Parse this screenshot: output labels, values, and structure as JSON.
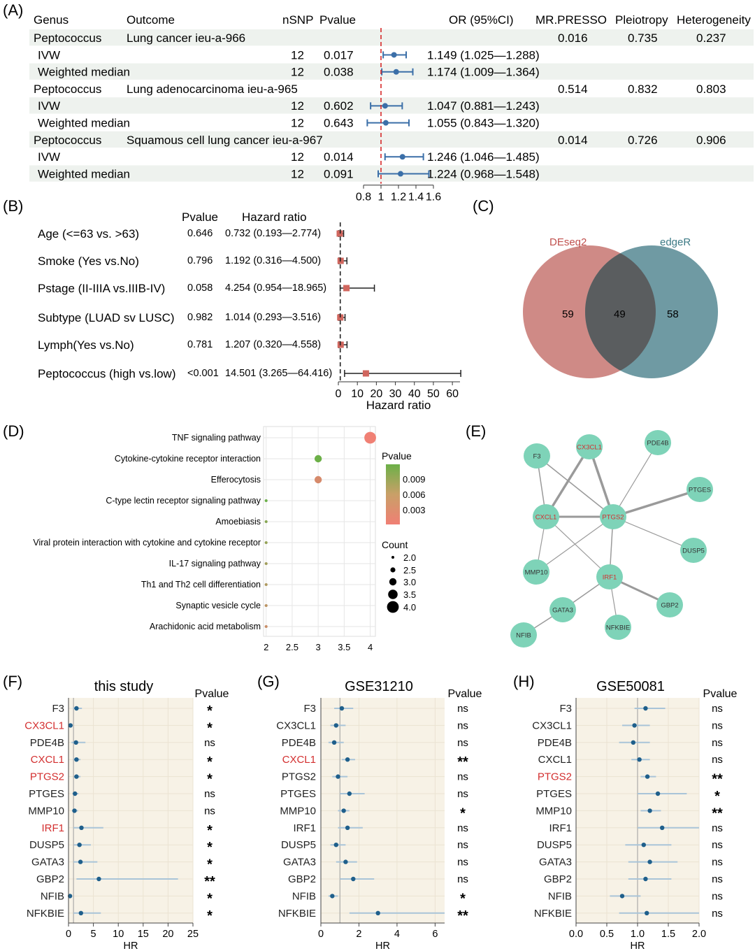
{
  "panel_labels": {
    "A": "(A)",
    "B": "(B)",
    "C": "(C)",
    "D": "(D)",
    "E": "(E)",
    "F": "(F)",
    "G": "(G)",
    "H": "(H)"
  },
  "colors": {
    "blue": "#3b6fa8",
    "red_dash": "#d62828",
    "stripe": "#eef2ee",
    "square": "#d0665e",
    "deseq": "#cf8a86",
    "edger": "#6f9aa3",
    "overlap": "#5a5d5f",
    "node": "#7ed3b8",
    "gene_red": "#d32f2f",
    "forest_bg": "#f7f2e6",
    "ci": "#a9c4d8",
    "dot": "#1f5f8b"
  },
  "panelA": {
    "headers": {
      "genus": "Genus",
      "outcome": "Outcome",
      "nsnp": "nSNP",
      "pvalue": "Pvalue",
      "or": "OR (95%CI)",
      "presso": "MR.PRESSO",
      "pleio": "Pleiotropy",
      "hetero": "Heterogeneity"
    },
    "rows": [
      {
        "kind": "group",
        "genus": "Peptococcus",
        "outcome": "Lung cancer ieu-a-966",
        "presso": "0.016",
        "pleio": "0.735",
        "hetero": "0.237"
      },
      {
        "kind": "method",
        "method": "IVW",
        "nsnp": "12",
        "pvalue": "0.017",
        "or_text": "1.149 (1.025—1.288)",
        "or": 1.149,
        "lo": 1.025,
        "hi": 1.288
      },
      {
        "kind": "method",
        "method": "Weighted median",
        "nsnp": "12",
        "pvalue": "0.038",
        "or_text": "1.174 (1.009—1.364)",
        "or": 1.174,
        "lo": 1.009,
        "hi": 1.364
      },
      {
        "kind": "group",
        "genus": "Peptococcus",
        "outcome": "Lung adenocarcinoma ieu-a-965",
        "presso": "0.514",
        "pleio": "0.832",
        "hetero": "0.803"
      },
      {
        "kind": "method",
        "method": "IVW",
        "nsnp": "12",
        "pvalue": "0.602",
        "or_text": "1.047 (0.881—1.243)",
        "or": 1.047,
        "lo": 0.881,
        "hi": 1.243
      },
      {
        "kind": "method",
        "method": "Weighted median",
        "nsnp": "12",
        "pvalue": "0.643",
        "or_text": "1.055 (0.843—1.320)",
        "or": 1.055,
        "lo": 0.843,
        "hi": 1.32
      },
      {
        "kind": "group",
        "genus": "Peptococcus",
        "outcome": "Squamous cell lung cancer ieu-a-967",
        "presso": "0.014",
        "pleio": "0.726",
        "hetero": "0.906"
      },
      {
        "kind": "method",
        "method": "IVW",
        "nsnp": "12",
        "pvalue": "0.014",
        "or_text": "1.246 (1.046—1.485)",
        "or": 1.246,
        "lo": 1.046,
        "hi": 1.485
      },
      {
        "kind": "method",
        "method": "Weighted median",
        "nsnp": "12",
        "pvalue": "0.091",
        "or_text": "1.224 (0.968—1.548)",
        "or": 1.224,
        "lo": 0.968,
        "hi": 1.548
      }
    ],
    "axis": {
      "min": 0.8,
      "max": 1.6,
      "ref": 1,
      "ticks": [
        "0.8",
        "1",
        "1.2",
        "1.4",
        "1.6"
      ]
    }
  },
  "panelB": {
    "header_p": "Pvalue",
    "header_hr": "Hazard ratio",
    "xlabel": "Hazard ratio",
    "rows": [
      {
        "label": "Age (<=63 vs. >63)",
        "p": "0.646",
        "hr_text": "0.732 (0.193—2.774)",
        "hr": 0.732,
        "lo": 0.193,
        "hi": 2.774
      },
      {
        "label": "Smoke (Yes vs.No)",
        "p": "0.796",
        "hr_text": "1.192 (0.316—4.500)",
        "hr": 1.192,
        "lo": 0.316,
        "hi": 4.5
      },
      {
        "label": "Pstage (II-IIIA vs.IIIB-IV)",
        "p": "0.058",
        "hr_text": "4.254 (0.954—18.965)",
        "hr": 4.254,
        "lo": 0.954,
        "hi": 18.965
      },
      {
        "label": "Subtype (LUAD sv LUSC)",
        "p": "0.982",
        "hr_text": "1.014 (0.293—3.516)",
        "hr": 1.014,
        "lo": 0.293,
        "hi": 3.516
      },
      {
        "label": "Lymph(Yes vs.No)",
        "p": "0.781",
        "hr_text": "1.207 (0.320—4.558)",
        "hr": 1.207,
        "lo": 0.32,
        "hi": 4.558
      },
      {
        "label": "Peptococcus (high vs.low)",
        "p": "<0.001",
        "hr_text": "14.501 (3.265—64.416)",
        "hr": 14.501,
        "lo": 3.265,
        "hi": 64.416
      }
    ],
    "axis": {
      "min": 0,
      "max": 64,
      "ticks": [
        "0",
        "10",
        "20",
        "30",
        "40",
        "50",
        "60"
      ]
    }
  },
  "panelC": {
    "left_label": "DEseq2",
    "right_label": "edgeR",
    "left_only": "59",
    "both": "49",
    "right_only": "58"
  },
  "panelD": {
    "chart_data": {
      "type": "scatter",
      "categories": [
        "TNF signaling pathway",
        "Cytokine-cytokine receptor interaction",
        "Efferocytosis",
        "C-type lectin receptor signaling pathway",
        "Amoebiasis",
        "Viral protein interaction with cytokine and cytokine receptor",
        "IL-17 signaling pathway",
        "Th1 and Th2 cell differentiation",
        "Synaptic vesicle cycle",
        "Arachidonic acid metabolism"
      ],
      "count": [
        4,
        3,
        3,
        2,
        2,
        2,
        2,
        2,
        2,
        2
      ],
      "pvalue": [
        0.001,
        0.011,
        0.003,
        0.011,
        0.009,
        0.008,
        0.007,
        0.006,
        0.005,
        0.004
      ],
      "xlim": [
        1.95,
        4.1
      ],
      "xticks": [
        "2",
        "2.5",
        "3",
        "3.5",
        "4"
      ],
      "legend_p_title": "Pvalue",
      "legend_p_ticks": [
        "0.009",
        "0.006",
        "0.003"
      ],
      "legend_c_title": "Count",
      "legend_c_items": [
        "2.0",
        "2.5",
        "3.0",
        "3.5",
        "4.0"
      ]
    }
  },
  "panelE": {
    "nodes": [
      {
        "id": "F3",
        "label": "F3",
        "red": false
      },
      {
        "id": "CX3CL1",
        "label": "CX3CL1",
        "red": true
      },
      {
        "id": "PDE4B",
        "label": "PDE4B",
        "red": false
      },
      {
        "id": "PTGES",
        "label": "PTGES",
        "red": false
      },
      {
        "id": "CXCL1",
        "label": "CXCL1",
        "red": true
      },
      {
        "id": "PTGS2",
        "label": "PTGS2",
        "red": true
      },
      {
        "id": "DUSP5",
        "label": "DUSP5",
        "red": false
      },
      {
        "id": "MMP10",
        "label": "MMP10",
        "red": false
      },
      {
        "id": "IRF1",
        "label": "IRF1",
        "red": true
      },
      {
        "id": "GBP2",
        "label": "GBP2",
        "red": false
      },
      {
        "id": "GATA3",
        "label": "GATA3",
        "red": false
      },
      {
        "id": "NFIBKE",
        "label": "NFKBIE",
        "red": false
      },
      {
        "id": "NFIB",
        "label": "NFIB",
        "red": false
      }
    ],
    "edges": [
      [
        "F3",
        "CXCL1",
        1.5
      ],
      [
        "F3",
        "PTGS2",
        1.5
      ],
      [
        "CX3CL1",
        "CXCL1",
        3.5
      ],
      [
        "CX3CL1",
        "PTGS2",
        3.5
      ],
      [
        "PDE4B",
        "PTGS2",
        1.2
      ],
      [
        "PTGES",
        "PTGS2",
        3.5
      ],
      [
        "CXCL1",
        "PTGS2",
        3
      ],
      [
        "CXCL1",
        "MMP10",
        1.2
      ],
      [
        "CXCL1",
        "IRF1",
        1.2
      ],
      [
        "PTGS2",
        "DUSP5",
        1.2
      ],
      [
        "PTGS2",
        "MMP10",
        1.2
      ],
      [
        "PTGS2",
        "IRF1",
        1.5
      ],
      [
        "IRF1",
        "GBP2",
        3
      ],
      [
        "IRF1",
        "GATA3",
        1.5
      ],
      [
        "IRF1",
        "NFIBKE",
        1.2
      ],
      [
        "GATA3",
        "NFIB",
        1.5
      ]
    ]
  },
  "forest": {
    "genes": [
      "F3",
      "CX3CL1",
      "PDE4B",
      "CXCL1",
      "PTGS2",
      "PTGES",
      "MMP10",
      "IRF1",
      "DUSP5",
      "GATA3",
      "GBP2",
      "NFIB",
      "NFKBIE"
    ],
    "pcol_title": "Pvalue",
    "xlabel": "HR",
    "panels": [
      {
        "key": "F",
        "title": "this study",
        "xmin": 0,
        "xmax": 25,
        "ticks": [
          "0",
          "5",
          "10",
          "15",
          "20",
          "25"
        ],
        "red": [
          1,
          3,
          4,
          7
        ],
        "hr": [
          1.6,
          0.4,
          1.5,
          1.6,
          1.6,
          1.3,
          1.2,
          2.6,
          2.2,
          2.4,
          6.1,
          0.3,
          2.5
        ],
        "lo": [
          0.9,
          0.2,
          0.6,
          1.0,
          1.1,
          0.8,
          0.7,
          1.0,
          1.1,
          1.0,
          1.6,
          0.1,
          1.0
        ],
        "hi": [
          2.7,
          0.8,
          3.4,
          2.4,
          2.4,
          2.0,
          1.9,
          7.0,
          4.5,
          5.8,
          22.0,
          0.7,
          6.5
        ],
        "sig": [
          "*",
          "*",
          "ns",
          "*",
          "*",
          "ns",
          "ns",
          "*",
          "*",
          "*",
          "**",
          "*",
          "*"
        ]
      },
      {
        "key": "G",
        "title": "GSE31210",
        "xmin": 0,
        "xmax": 6.5,
        "ticks": [
          "0",
          "2",
          "4",
          "6"
        ],
        "red": [
          3
        ],
        "hr": [
          1.1,
          0.8,
          0.7,
          1.4,
          0.9,
          1.5,
          1.2,
          1.4,
          0.8,
          1.3,
          1.7,
          0.6,
          3.0
        ],
        "lo": [
          0.7,
          0.5,
          0.4,
          1.1,
          0.6,
          1.0,
          0.9,
          0.9,
          0.5,
          0.8,
          1.0,
          0.4,
          1.5
        ],
        "hi": [
          1.7,
          1.3,
          1.2,
          1.8,
          1.4,
          2.3,
          1.5,
          2.2,
          1.3,
          1.9,
          2.8,
          0.9,
          6.5
        ],
        "sig": [
          "ns",
          "ns",
          "ns",
          "**",
          "ns",
          "ns",
          "*",
          "ns",
          "ns",
          "ns",
          "ns",
          "*",
          "**"
        ]
      },
      {
        "key": "H",
        "title": "GSE50081",
        "xmin": 0,
        "xmax": 2.0,
        "ticks": [
          "0.0",
          "0.5",
          "1.0",
          "1.5",
          "2.0"
        ],
        "red": [
          4
        ],
        "hr": [
          1.13,
          0.95,
          0.93,
          1.03,
          1.16,
          1.33,
          1.2,
          1.4,
          1.1,
          1.2,
          1.13,
          0.75,
          1.15
        ],
        "lo": [
          0.95,
          0.75,
          0.7,
          0.9,
          1.05,
          1.0,
          1.05,
          1.0,
          0.8,
          0.85,
          0.85,
          0.55,
          0.7
        ],
        "hi": [
          1.45,
          1.2,
          1.2,
          1.2,
          1.3,
          1.8,
          1.38,
          2.0,
          1.55,
          1.65,
          1.55,
          1.05,
          2.0
        ],
        "sig": [
          "ns",
          "ns",
          "ns",
          "ns",
          "**",
          "*",
          "**",
          "ns",
          "ns",
          "ns",
          "ns",
          "ns",
          "ns"
        ]
      }
    ]
  }
}
